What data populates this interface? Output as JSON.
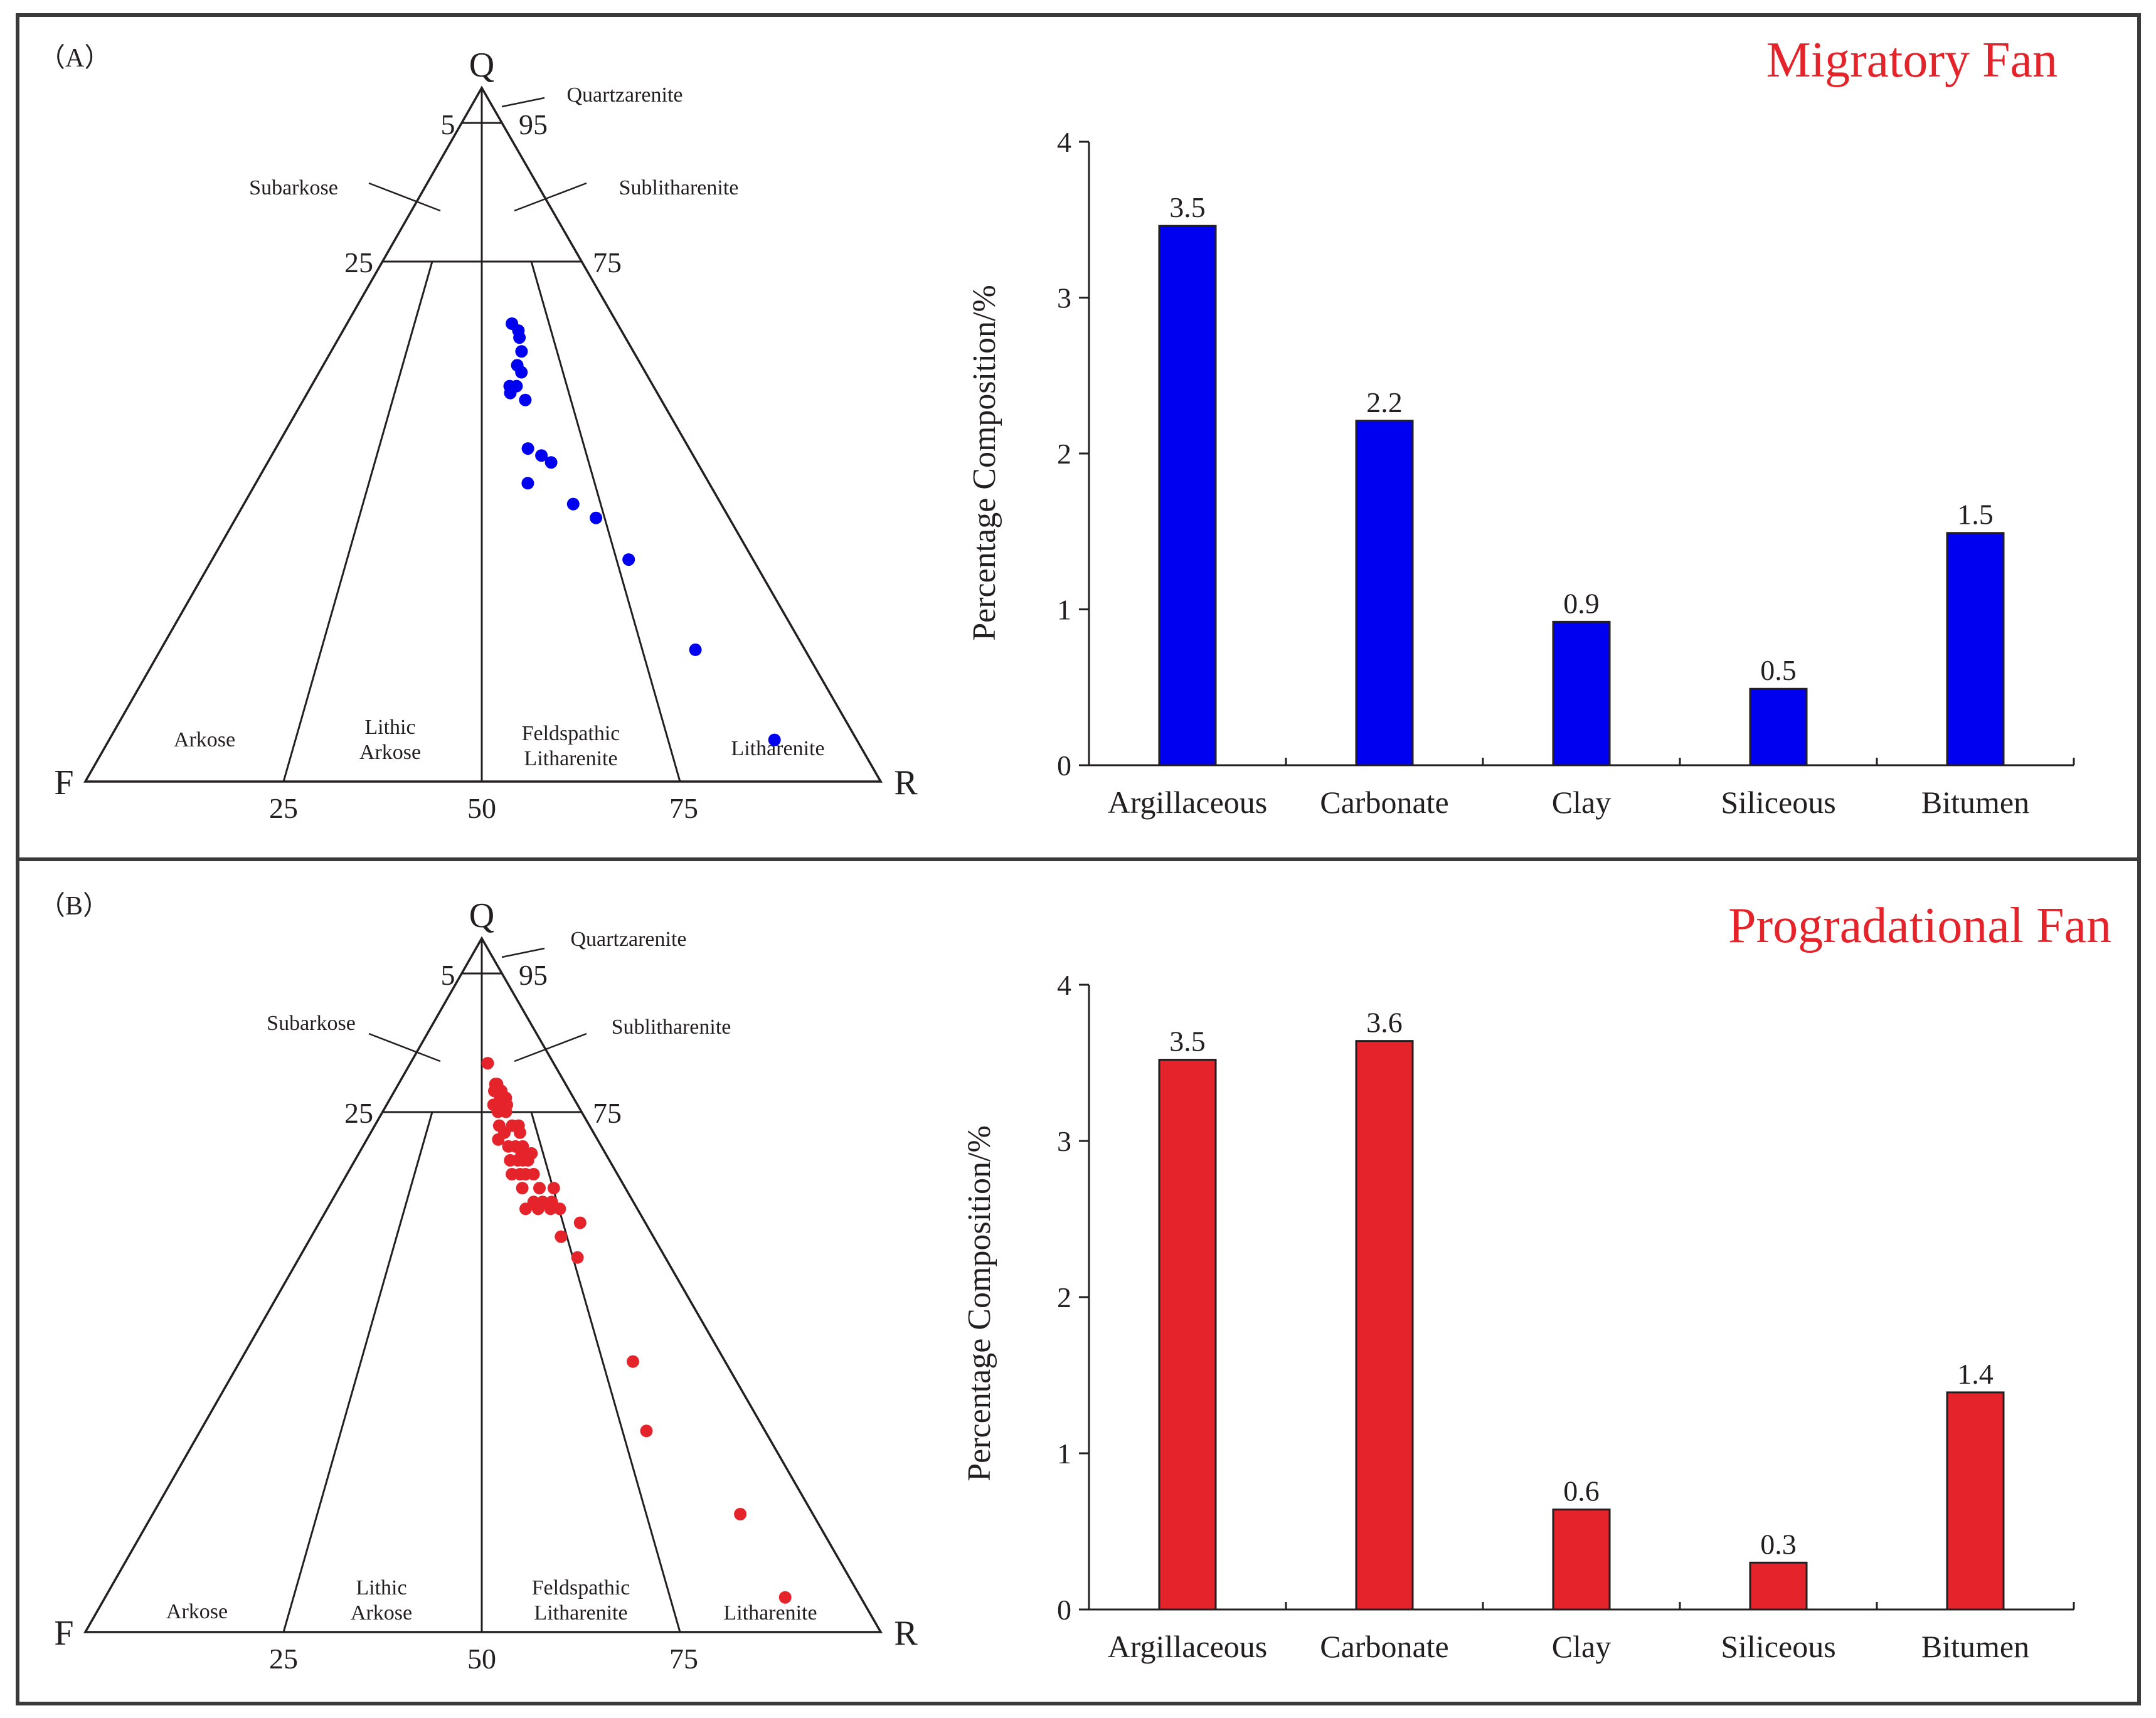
{
  "colors": {
    "border": "#3a3a3a",
    "axis": "#231f20",
    "panel_a_title": "#e5232b",
    "panel_a_points": "#0000f0",
    "panel_a_bars": "#0000f0",
    "panel_b_title": "#e5232b",
    "panel_b_points": "#e5232b",
    "panel_b_bars": "#e5232b"
  },
  "panels": [
    {
      "label": "（A）",
      "title": "Migratory Fan",
      "ternary": {
        "vertices": {
          "top": "Q",
          "left": "F",
          "right": "R"
        },
        "side_ticks": {
          "left_upper": "5",
          "right_upper": "95",
          "left_mid": "25",
          "right_mid": "75"
        },
        "base_ticks": [
          "25",
          "50",
          "75"
        ],
        "fields": {
          "quartzarenite": "Quartzarenite",
          "subarkose": "Subarkose",
          "sublitharenite": "Sublitharenite",
          "arkose": "Arkose",
          "lithic_arkose": [
            "Lithic",
            "Arkose"
          ],
          "feldspathic_litharenite": [
            "Feldspathic",
            "Litharenite"
          ],
          "litharenite": "Litharenite"
        }
      },
      "chart_data": {
        "type": "bar",
        "title": "Migratory Fan",
        "categories": [
          "Argillaceous",
          "Carbonate",
          "Clay",
          "Siliceous",
          "Bitumen"
        ],
        "values": [
          3.46,
          2.21,
          0.92,
          0.49,
          1.49
        ],
        "data_labels": [
          "3.5",
          "2.2",
          "0.9",
          "0.5",
          "1.5"
        ],
        "ylabel": "Percentage Composition/%",
        "xlabel": "",
        "ylim": [
          0,
          4
        ],
        "yticks": [
          "0",
          "1",
          "2",
          "3",
          "4"
        ],
        "ternary_points": {
          "description": "Q-F-R sandstone classification; q = quartz fraction (0-100 from base to apex), r = rock fragment share of F+R (0-100 from F to R)",
          "q": [
            66,
            65,
            64,
            62,
            60,
            59,
            57,
            57,
            56,
            55,
            48,
            47,
            46,
            43,
            40,
            38,
            32,
            19,
            6
          ],
          "r": [
            61,
            63,
            63,
            63,
            61,
            62,
            60,
            58,
            58,
            62,
            61,
            64,
            66,
            60,
            69,
            73,
            77,
            83,
            89
          ]
        }
      }
    },
    {
      "label": "（B）",
      "title": "Progradational Fan",
      "ternary": {
        "vertices": {
          "top": "Q",
          "left": "F",
          "right": "R"
        },
        "side_ticks": {
          "left_upper": "5",
          "right_upper": "95",
          "left_mid": "25",
          "right_mid": "75"
        },
        "base_ticks": [
          "25",
          "50",
          "75"
        ],
        "fields": {
          "quartzarenite": "Quartzarenite",
          "subarkose": "Subarkose",
          "sublitharenite": "Sublitharenite",
          "arkose": "Arkose",
          "lithic_arkose": [
            "Lithic",
            "Arkose"
          ],
          "feldspathic_litharenite": [
            "Feldspathic",
            "Litharenite"
          ],
          "litharenite": "Litharenite"
        }
      },
      "chart_data": {
        "type": "bar",
        "title": "Progradational Fan",
        "categories": [
          "Argillaceous",
          "Carbonate",
          "Clay",
          "Siliceous",
          "Bitumen"
        ],
        "values": [
          3.52,
          3.64,
          0.64,
          0.3,
          1.39
        ],
        "data_labels": [
          "3.5",
          "3.6",
          "0.6",
          "0.3",
          "1.4"
        ],
        "ylabel": "Percentage Composition/%",
        "xlabel": "",
        "ylim": [
          0,
          4
        ],
        "yticks": [
          "0",
          "1",
          "2",
          "3",
          "4"
        ],
        "ternary_points": {
          "description": "Q-F-R sandstone classification; q = quartz fraction (0-100 from base to apex), r = rock fragment share of F+R (0-100 from F to R)",
          "q": [
            82,
            79,
            79,
            78,
            78,
            77,
            77,
            76,
            76,
            76,
            76,
            75,
            75,
            73,
            73,
            73,
            72,
            72,
            71,
            70,
            70,
            70,
            69,
            69,
            68,
            68,
            68,
            68,
            66,
            66,
            66,
            66,
            64,
            64,
            64,
            62,
            62,
            62,
            61,
            61,
            61,
            61,
            59,
            57,
            54,
            39,
            29,
            17,
            5
          ],
          "r": [
            54,
            58,
            59,
            61,
            57,
            60,
            63,
            56,
            58,
            60,
            63,
            58,
            62,
            58,
            64,
            67,
            60,
            67,
            57,
            61,
            64,
            67,
            66,
            70,
            61,
            64,
            66,
            68,
            61,
            64,
            66,
            69,
            64,
            70,
            75,
            67,
            70,
            73,
            64,
            68,
            72,
            75,
            80,
            73,
            76,
            81,
            79,
            89,
            90
          ]
        }
      }
    }
  ]
}
